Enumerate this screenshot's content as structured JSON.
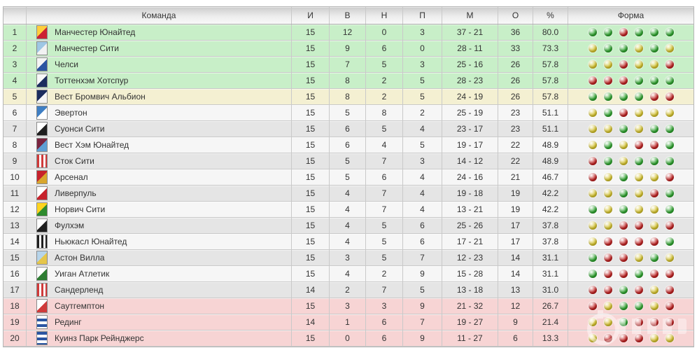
{
  "table": {
    "columns": {
      "rank": "",
      "team": "Команда",
      "played": "И",
      "wins": "В",
      "draws": "Н",
      "losses": "П",
      "goals": "М",
      "points": "О",
      "percent": "%",
      "form": "Форма"
    },
    "zone_colors": {
      "champions": "#c8efc8",
      "europa": "#f4f0d2",
      "mid_light": "#f6f6f6",
      "mid_dark": "#e5e5e5",
      "relegation": "#f7d4d4"
    },
    "form_colors": {
      "g": "#2fa62f",
      "y": "#d9c62e",
      "r": "#c32222"
    },
    "form_legend": {
      "g": "win",
      "y": "draw",
      "r": "loss"
    },
    "rows": [
      {
        "pos": "1",
        "team": "Манчестер Юнайтед",
        "icon": {
          "style": "split",
          "colors": [
            "#ffce3c",
            "#cc2233"
          ]
        },
        "played": "15",
        "wins": "12",
        "draws": "0",
        "losses": "3",
        "goals": "37 - 21",
        "points": "36",
        "percent": "80.0",
        "zone": "champions",
        "form": [
          "g",
          "g",
          "r",
          "g",
          "g",
          "g"
        ]
      },
      {
        "pos": "2",
        "team": "Манчестер Сити",
        "icon": {
          "style": "split",
          "colors": [
            "#9ec7e4",
            "#f2f2f2"
          ]
        },
        "played": "15",
        "wins": "9",
        "draws": "6",
        "losses": "0",
        "goals": "28 - 11",
        "points": "33",
        "percent": "73.3",
        "zone": "champions",
        "form": [
          "y",
          "g",
          "g",
          "y",
          "g",
          "y"
        ]
      },
      {
        "pos": "3",
        "team": "Челси",
        "icon": {
          "style": "split",
          "colors": [
            "#f5f5f5",
            "#2b55a2"
          ]
        },
        "played": "15",
        "wins": "7",
        "draws": "5",
        "losses": "3",
        "goals": "25 - 16",
        "points": "26",
        "percent": "57.8",
        "zone": "champions",
        "form": [
          "y",
          "y",
          "r",
          "y",
          "y",
          "r"
        ]
      },
      {
        "pos": "4",
        "team": "Тоттенхэм Хотспур",
        "icon": {
          "style": "split",
          "colors": [
            "#f8f8f8",
            "#1c2d5e"
          ]
        },
        "played": "15",
        "wins": "8",
        "draws": "2",
        "losses": "5",
        "goals": "28 - 23",
        "points": "26",
        "percent": "57.8",
        "zone": "champions",
        "form": [
          "r",
          "r",
          "r",
          "g",
          "g",
          "g"
        ]
      },
      {
        "pos": "5",
        "team": "Вест Бромвич Альбион",
        "icon": {
          "style": "split",
          "colors": [
            "#1c2d5e",
            "#f5f5f5"
          ]
        },
        "played": "15",
        "wins": "8",
        "draws": "2",
        "losses": "5",
        "goals": "24 - 19",
        "points": "26",
        "percent": "57.8",
        "zone": "europa",
        "form": [
          "g",
          "g",
          "g",
          "g",
          "r",
          "r"
        ]
      },
      {
        "pos": "6",
        "team": "Эвертон",
        "icon": {
          "style": "split",
          "colors": [
            "#3f7fc4",
            "#ffffff"
          ]
        },
        "played": "15",
        "wins": "5",
        "draws": "8",
        "losses": "2",
        "goals": "25 - 19",
        "points": "23",
        "percent": "51.1",
        "zone": "none",
        "form": [
          "y",
          "g",
          "r",
          "y",
          "y",
          "y"
        ]
      },
      {
        "pos": "7",
        "team": "Суонси Сити",
        "icon": {
          "style": "split",
          "colors": [
            "#ffffff",
            "#1f1f1f"
          ]
        },
        "played": "15",
        "wins": "6",
        "draws": "5",
        "losses": "4",
        "goals": "23 - 17",
        "points": "23",
        "percent": "51.1",
        "zone": "none",
        "form": [
          "y",
          "y",
          "g",
          "y",
          "g",
          "g"
        ]
      },
      {
        "pos": "8",
        "team": "Вест Хэм Юнайтед",
        "icon": {
          "style": "split",
          "colors": [
            "#7a2540",
            "#5e9fd4"
          ]
        },
        "played": "15",
        "wins": "6",
        "draws": "4",
        "losses": "5",
        "goals": "19 - 17",
        "points": "22",
        "percent": "48.9",
        "zone": "none",
        "form": [
          "y",
          "g",
          "y",
          "r",
          "r",
          "g"
        ]
      },
      {
        "pos": "9",
        "team": "Сток Сити",
        "icon": {
          "style": "stripes-v",
          "colors": [
            "#d03a3a",
            "#ffffff"
          ]
        },
        "played": "15",
        "wins": "5",
        "draws": "7",
        "losses": "3",
        "goals": "14 - 12",
        "points": "22",
        "percent": "48.9",
        "zone": "none",
        "form": [
          "r",
          "g",
          "y",
          "g",
          "g",
          "g"
        ]
      },
      {
        "pos": "10",
        "team": "Арсенал",
        "icon": {
          "style": "split",
          "colors": [
            "#c7222c",
            "#d9a62e"
          ]
        },
        "played": "15",
        "wins": "5",
        "draws": "6",
        "losses": "4",
        "goals": "24 - 16",
        "points": "21",
        "percent": "46.7",
        "zone": "none",
        "form": [
          "r",
          "y",
          "g",
          "y",
          "y",
          "r"
        ]
      },
      {
        "pos": "11",
        "team": "Ливерпуль",
        "icon": {
          "style": "split",
          "colors": [
            "#ffffff",
            "#c7222c"
          ]
        },
        "played": "15",
        "wins": "4",
        "draws": "7",
        "losses": "4",
        "goals": "19 - 18",
        "points": "19",
        "percent": "42.2",
        "zone": "none",
        "form": [
          "y",
          "y",
          "g",
          "y",
          "r",
          "g"
        ]
      },
      {
        "pos": "12",
        "team": "Норвич Сити",
        "icon": {
          "style": "split",
          "colors": [
            "#ffd41f",
            "#2e8b2e"
          ]
        },
        "played": "15",
        "wins": "4",
        "draws": "7",
        "losses": "4",
        "goals": "13 - 21",
        "points": "19",
        "percent": "42.2",
        "zone": "none",
        "form": [
          "g",
          "y",
          "g",
          "y",
          "y",
          "g"
        ]
      },
      {
        "pos": "13",
        "team": "Фулхэм",
        "icon": {
          "style": "split",
          "colors": [
            "#ffffff",
            "#1f1f1f"
          ]
        },
        "played": "15",
        "wins": "4",
        "draws": "5",
        "losses": "6",
        "goals": "25 - 26",
        "points": "17",
        "percent": "37.8",
        "zone": "none",
        "form": [
          "y",
          "y",
          "r",
          "r",
          "y",
          "r"
        ]
      },
      {
        "pos": "14",
        "team": "Ньюкасл Юнайтед",
        "icon": {
          "style": "stripes-v",
          "colors": [
            "#1f1f1f",
            "#ffffff"
          ]
        },
        "played": "15",
        "wins": "4",
        "draws": "5",
        "losses": "6",
        "goals": "17 - 21",
        "points": "17",
        "percent": "37.8",
        "zone": "none",
        "form": [
          "y",
          "r",
          "r",
          "r",
          "r",
          "g"
        ]
      },
      {
        "pos": "15",
        "team": "Астон Вилла",
        "icon": {
          "style": "split",
          "colors": [
            "#b6d4ea",
            "#e5c64a"
          ]
        },
        "played": "15",
        "wins": "3",
        "draws": "5",
        "losses": "7",
        "goals": "12 - 23",
        "points": "14",
        "percent": "31.1",
        "zone": "none",
        "form": [
          "g",
          "r",
          "r",
          "y",
          "g",
          "y"
        ]
      },
      {
        "pos": "16",
        "team": "Уиган Атлетик",
        "icon": {
          "style": "split",
          "colors": [
            "#ffffff",
            "#2e7d32"
          ]
        },
        "played": "15",
        "wins": "4",
        "draws": "2",
        "losses": "9",
        "goals": "15 - 28",
        "points": "14",
        "percent": "31.1",
        "zone": "none",
        "form": [
          "g",
          "r",
          "r",
          "g",
          "r",
          "r"
        ]
      },
      {
        "pos": "17",
        "team": "Сандерленд",
        "icon": {
          "style": "stripes-v",
          "colors": [
            "#d03a3a",
            "#ffffff"
          ]
        },
        "played": "14",
        "wins": "2",
        "draws": "7",
        "losses": "5",
        "goals": "13 - 18",
        "points": "13",
        "percent": "31.0",
        "zone": "none",
        "form": [
          "r",
          "r",
          "g",
          "r",
          "y",
          "r"
        ]
      },
      {
        "pos": "18",
        "team": "Саутгемптон",
        "icon": {
          "style": "split",
          "colors": [
            "#ffffff",
            "#d03a3a"
          ]
        },
        "played": "15",
        "wins": "3",
        "draws": "3",
        "losses": "9",
        "goals": "21 - 32",
        "points": "12",
        "percent": "26.7",
        "zone": "relegation",
        "form": [
          "r",
          "y",
          "g",
          "g",
          "y",
          "r"
        ]
      },
      {
        "pos": "19",
        "team": "Рединг",
        "icon": {
          "style": "stripes-h",
          "colors": [
            "#ffffff",
            "#2b55a2"
          ]
        },
        "played": "14",
        "wins": "1",
        "draws": "6",
        "losses": "7",
        "goals": "19 - 27",
        "points": "9",
        "percent": "21.4",
        "zone": "relegation",
        "form": [
          "y",
          "y",
          "g",
          "r",
          "r",
          "r"
        ]
      },
      {
        "pos": "20",
        "team": "Куинз Парк Рейнджерс",
        "icon": {
          "style": "stripes-h",
          "colors": [
            "#2b55a2",
            "#ffffff"
          ]
        },
        "played": "15",
        "wins": "0",
        "draws": "6",
        "losses": "9",
        "goals": "11 - 27",
        "points": "6",
        "percent": "13.3",
        "zone": "relegation",
        "form": [
          "y",
          "r",
          "r",
          "r",
          "y",
          "y"
        ]
      }
    ]
  }
}
